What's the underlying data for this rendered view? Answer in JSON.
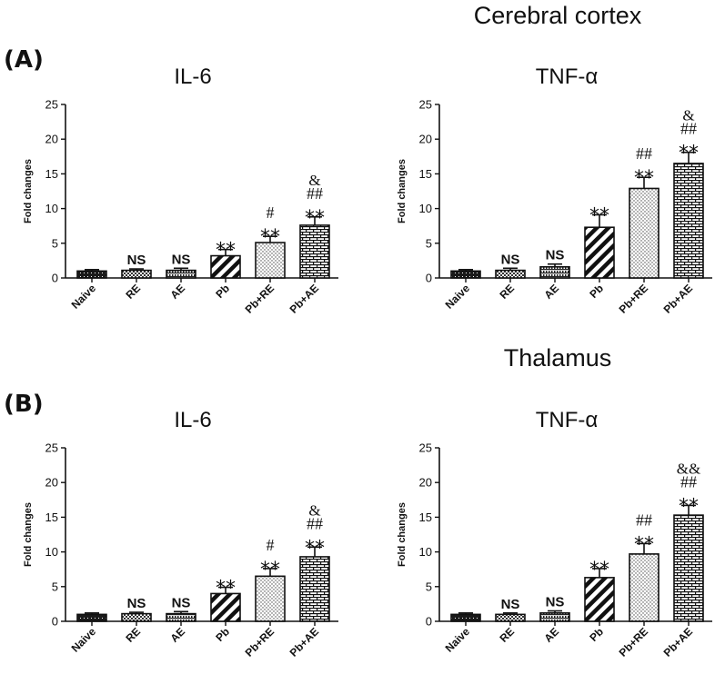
{
  "figure": {
    "panel_a_label": "(A)",
    "panel_b_label": "(B)",
    "region_a": "Cerebral cortex",
    "region_b": "Thalamus"
  },
  "chart_data": [
    {
      "id": "a-il6",
      "type": "bar",
      "title": "IL-6",
      "xlabel": "",
      "ylabel": "Fold changes",
      "ylim": [
        0,
        25
      ],
      "yticks": [
        "0",
        "5",
        "10",
        "15",
        "20",
        "25"
      ],
      "categories": [
        "Naive",
        "RE",
        "AE",
        "Pb",
        "Pb+RE",
        "Pb+AE"
      ],
      "values": [
        1.0,
        1.1,
        1.1,
        3.2,
        5.1,
        7.6
      ],
      "errors": [
        0.2,
        0.2,
        0.3,
        0.9,
        0.9,
        1.2
      ],
      "annotations": [
        [],
        [
          "NS"
        ],
        [
          "NS"
        ],
        [
          "**"
        ],
        [
          "#",
          "**"
        ],
        [
          "&",
          "##",
          "**"
        ]
      ]
    },
    {
      "id": "a-tnf",
      "type": "bar",
      "title": "TNF-α",
      "xlabel": "",
      "ylabel": "Fold changes",
      "ylim": [
        0,
        25
      ],
      "yticks": [
        "0",
        "5",
        "10",
        "15",
        "20",
        "25"
      ],
      "categories": [
        "Naive",
        "RE",
        "AE",
        "Pb",
        "Pb+RE",
        "Pb+AE"
      ],
      "values": [
        1.0,
        1.1,
        1.6,
        7.3,
        12.9,
        16.5
      ],
      "errors": [
        0.2,
        0.3,
        0.4,
        1.8,
        1.6,
        1.6
      ],
      "annotations": [
        [],
        [
          "NS"
        ],
        [
          "NS"
        ],
        [
          "**"
        ],
        [
          "##",
          "**"
        ],
        [
          "&",
          "##",
          "**"
        ]
      ]
    },
    {
      "id": "b-il6",
      "type": "bar",
      "title": "IL-6",
      "xlabel": "",
      "ylabel": "Fold changes",
      "ylim": [
        0,
        25
      ],
      "yticks": [
        "0",
        "5",
        "10",
        "15",
        "20",
        "25"
      ],
      "categories": [
        "Naive",
        "RE",
        "AE",
        "Pb",
        "Pb+RE",
        "Pb+AE"
      ],
      "values": [
        1.0,
        1.1,
        1.1,
        4.0,
        6.5,
        9.3
      ],
      "errors": [
        0.2,
        0.2,
        0.3,
        0.9,
        1.1,
        1.4
      ],
      "annotations": [
        [],
        [
          "NS"
        ],
        [
          "NS"
        ],
        [
          "**"
        ],
        [
          "#",
          "**"
        ],
        [
          "&",
          "##",
          "**"
        ]
      ]
    },
    {
      "id": "b-tnf",
      "type": "bar",
      "title": "TNF-α",
      "xlabel": "",
      "ylabel": "Fold changes",
      "ylim": [
        0,
        25
      ],
      "yticks": [
        "0",
        "5",
        "10",
        "15",
        "20",
        "25"
      ],
      "categories": [
        "Naive",
        "RE",
        "AE",
        "Pb",
        "Pb+RE",
        "Pb+AE"
      ],
      "values": [
        1.0,
        1.0,
        1.2,
        6.3,
        9.7,
        15.3
      ],
      "errors": [
        0.2,
        0.2,
        0.3,
        1.3,
        1.5,
        1.4
      ],
      "annotations": [
        [],
        [
          "NS"
        ],
        [
          "NS"
        ],
        [
          "**"
        ],
        [
          "##",
          "**"
        ],
        [
          "&&",
          "##",
          "**"
        ]
      ]
    }
  ]
}
